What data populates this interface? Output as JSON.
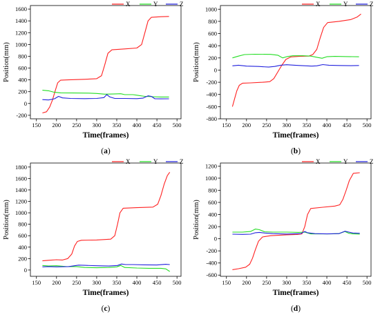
{
  "chart_data": [
    {
      "type": "line",
      "panel_label": "a",
      "xlabel": "Time(frames)",
      "ylabel": "Position(mm)",
      "xlim": [
        135,
        510
      ],
      "ylim": [
        -260,
        1660
      ],
      "xticks": [
        150,
        200,
        250,
        300,
        350,
        400,
        450,
        500
      ],
      "yticks": [
        -200,
        0,
        200,
        400,
        600,
        800,
        1000,
        1200,
        1400,
        1600
      ],
      "legend": "top-right",
      "series": [
        {
          "name": "X",
          "color": "#ff2020",
          "points": [
            [
              165,
              -160
            ],
            [
              175,
              -140
            ],
            [
              183,
              -60
            ],
            [
              190,
              60
            ],
            [
              196,
              200
            ],
            [
              203,
              350
            ],
            [
              210,
              395
            ],
            [
              230,
              400
            ],
            [
              270,
              410
            ],
            [
              300,
              420
            ],
            [
              312,
              470
            ],
            [
              320,
              650
            ],
            [
              328,
              850
            ],
            [
              338,
              910
            ],
            [
              370,
              925
            ],
            [
              400,
              940
            ],
            [
              412,
              1000
            ],
            [
              420,
              1200
            ],
            [
              428,
              1400
            ],
            [
              436,
              1460
            ],
            [
              460,
              1470
            ],
            [
              480,
              1475
            ]
          ]
        },
        {
          "name": "Y",
          "color": "#22dd22",
          "points": [
            [
              165,
              225
            ],
            [
              180,
              215
            ],
            [
              195,
              190
            ],
            [
              210,
              180
            ],
            [
              240,
              178
            ],
            [
              280,
              175
            ],
            [
              300,
              170
            ],
            [
              320,
              158
            ],
            [
              340,
              160
            ],
            [
              360,
              165
            ],
            [
              370,
              150
            ],
            [
              390,
              150
            ],
            [
              400,
              140
            ],
            [
              420,
              120
            ],
            [
              440,
              115
            ],
            [
              460,
              110
            ],
            [
              480,
              110
            ]
          ]
        },
        {
          "name": "Z",
          "color": "#2020dd",
          "points": [
            [
              165,
              65
            ],
            [
              180,
              60
            ],
            [
              195,
              80
            ],
            [
              205,
              120
            ],
            [
              215,
              95
            ],
            [
              235,
              85
            ],
            [
              270,
              82
            ],
            [
              300,
              85
            ],
            [
              318,
              100
            ],
            [
              325,
              150
            ],
            [
              333,
              110
            ],
            [
              345,
              85
            ],
            [
              370,
              85
            ],
            [
              400,
              82
            ],
            [
              415,
              90
            ],
            [
              428,
              130
            ],
            [
              436,
              120
            ],
            [
              445,
              80
            ],
            [
              460,
              78
            ],
            [
              480,
              80
            ]
          ]
        }
      ]
    },
    {
      "type": "line",
      "panel_label": "b",
      "xlabel": "Time(frames)",
      "ylabel": "Position(mm)",
      "xlim": [
        135,
        510
      ],
      "ylim": [
        -800,
        1060
      ],
      "xticks": [
        150,
        200,
        250,
        300,
        350,
        400,
        450,
        500
      ],
      "yticks": [
        -800,
        -600,
        -400,
        -200,
        0,
        200,
        400,
        600,
        800,
        1000
      ],
      "legend": "top-right",
      "series": [
        {
          "name": "X",
          "color": "#ff2020",
          "points": [
            [
              165,
              -600
            ],
            [
              170,
              -480
            ],
            [
              176,
              -340
            ],
            [
              182,
              -250
            ],
            [
              190,
              -215
            ],
            [
              210,
              -210
            ],
            [
              240,
              -200
            ],
            [
              258,
              -190
            ],
            [
              268,
              -140
            ],
            [
              278,
              -30
            ],
            [
              288,
              80
            ],
            [
              298,
              175
            ],
            [
              310,
              215
            ],
            [
              330,
              225
            ],
            [
              355,
              230
            ],
            [
              365,
              255
            ],
            [
              375,
              340
            ],
            [
              383,
              520
            ],
            [
              392,
              700
            ],
            [
              402,
              780
            ],
            [
              430,
              800
            ],
            [
              460,
              830
            ],
            [
              475,
              870
            ],
            [
              485,
              920
            ]
          ]
        },
        {
          "name": "Y",
          "color": "#22dd22",
          "points": [
            [
              165,
              200
            ],
            [
              180,
              230
            ],
            [
              195,
              255
            ],
            [
              220,
              260
            ],
            [
              260,
              258
            ],
            [
              278,
              245
            ],
            [
              290,
              200
            ],
            [
              300,
              220
            ],
            [
              315,
              235
            ],
            [
              340,
              235
            ],
            [
              360,
              230
            ],
            [
              375,
              210
            ],
            [
              388,
              195
            ],
            [
              400,
              220
            ],
            [
              420,
              225
            ],
            [
              450,
              222
            ],
            [
              480,
              218
            ]
          ]
        },
        {
          "name": "Z",
          "color": "#2020dd",
          "points": [
            [
              165,
              70
            ],
            [
              180,
              80
            ],
            [
              200,
              65
            ],
            [
              230,
              60
            ],
            [
              255,
              50
            ],
            [
              270,
              60
            ],
            [
              285,
              80
            ],
            [
              300,
              88
            ],
            [
              320,
              80
            ],
            [
              340,
              72
            ],
            [
              362,
              65
            ],
            [
              375,
              70
            ],
            [
              390,
              90
            ],
            [
              405,
              80
            ],
            [
              430,
              75
            ],
            [
              460,
              72
            ],
            [
              480,
              75
            ]
          ]
        }
      ]
    },
    {
      "type": "line",
      "panel_label": "c",
      "xlabel": "Time(frames)",
      "ylabel": "Position(mm)",
      "xlim": [
        135,
        510
      ],
      "ylim": [
        -110,
        1870
      ],
      "xticks": [
        150,
        200,
        250,
        300,
        350,
        400,
        450,
        500
      ],
      "yticks": [
        0,
        200,
        400,
        600,
        800,
        1000,
        1200,
        1400,
        1600,
        1800
      ],
      "legend": "top-right",
      "series": [
        {
          "name": "X",
          "color": "#ff2020",
          "points": [
            [
              165,
              160
            ],
            [
              180,
              170
            ],
            [
              200,
              180
            ],
            [
              215,
              175
            ],
            [
              228,
              200
            ],
            [
              238,
              280
            ],
            [
              245,
              420
            ],
            [
              252,
              500
            ],
            [
              262,
              520
            ],
            [
              300,
              525
            ],
            [
              335,
              540
            ],
            [
              345,
              600
            ],
            [
              352,
              800
            ],
            [
              358,
              1000
            ],
            [
              366,
              1080
            ],
            [
              400,
              1090
            ],
            [
              440,
              1100
            ],
            [
              452,
              1150
            ],
            [
              460,
              1300
            ],
            [
              468,
              1500
            ],
            [
              476,
              1650
            ],
            [
              482,
              1710
            ]
          ]
        },
        {
          "name": "Y",
          "color": "#22dd22",
          "points": [
            [
              165,
              80
            ],
            [
              180,
              70
            ],
            [
              200,
              75
            ],
            [
              225,
              60
            ],
            [
              250,
              60
            ],
            [
              270,
              45
            ],
            [
              300,
              40
            ],
            [
              330,
              45
            ],
            [
              350,
              55
            ],
            [
              360,
              80
            ],
            [
              370,
              45
            ],
            [
              400,
              35
            ],
            [
              430,
              30
            ],
            [
              460,
              30
            ],
            [
              472,
              20
            ],
            [
              482,
              -25
            ]
          ]
        },
        {
          "name": "Z",
          "color": "#2020dd",
          "points": [
            [
              165,
              55
            ],
            [
              180,
              60
            ],
            [
              200,
              55
            ],
            [
              230,
              60
            ],
            [
              255,
              85
            ],
            [
              270,
              82
            ],
            [
              300,
              75
            ],
            [
              330,
              70
            ],
            [
              352,
              80
            ],
            [
              362,
              105
            ],
            [
              372,
              95
            ],
            [
              390,
              95
            ],
            [
              420,
              90
            ],
            [
              450,
              88
            ],
            [
              472,
              100
            ],
            [
              482,
              95
            ]
          ]
        }
      ]
    },
    {
      "type": "line",
      "panel_label": "d",
      "xlabel": "Time(frames)",
      "ylabel": "Position(mm)",
      "xlim": [
        135,
        510
      ],
      "ylim": [
        -620,
        1250
      ],
      "xticks": [
        150,
        200,
        250,
        300,
        350,
        400,
        450,
        500
      ],
      "yticks": [
        -600,
        -400,
        -200,
        0,
        200,
        400,
        600,
        800,
        1000,
        1200
      ],
      "legend": "top-right",
      "series": [
        {
          "name": "X",
          "color": "#ff2020",
          "points": [
            [
              165,
              -510
            ],
            [
              180,
              -495
            ],
            [
              198,
              -470
            ],
            [
              208,
              -420
            ],
            [
              215,
              -320
            ],
            [
              222,
              -180
            ],
            [
              230,
              -40
            ],
            [
              240,
              30
            ],
            [
              260,
              50
            ],
            [
              300,
              65
            ],
            [
              325,
              70
            ],
            [
              338,
              80
            ],
            [
              345,
              200
            ],
            [
              352,
              400
            ],
            [
              360,
              500
            ],
            [
              390,
              520
            ],
            [
              420,
              540
            ],
            [
              432,
              560
            ],
            [
              440,
              650
            ],
            [
              448,
              800
            ],
            [
              456,
              960
            ],
            [
              466,
              1080
            ],
            [
              482,
              1090
            ]
          ]
        },
        {
          "name": "Y",
          "color": "#22dd22",
          "points": [
            [
              165,
              110
            ],
            [
              190,
              110
            ],
            [
              210,
              120
            ],
            [
              222,
              160
            ],
            [
              232,
              150
            ],
            [
              245,
              115
            ],
            [
              265,
              110
            ],
            [
              300,
              110
            ],
            [
              330,
              105
            ],
            [
              345,
              110
            ],
            [
              360,
              80
            ],
            [
              380,
              80
            ],
            [
              410,
              80
            ],
            [
              430,
              85
            ],
            [
              445,
              120
            ],
            [
              455,
              90
            ],
            [
              465,
              80
            ],
            [
              482,
              75
            ]
          ]
        },
        {
          "name": "Z",
          "color": "#2020dd",
          "points": [
            [
              165,
              75
            ],
            [
              190,
              72
            ],
            [
              210,
              75
            ],
            [
              222,
              100
            ],
            [
              232,
              105
            ],
            [
              245,
              95
            ],
            [
              265,
              85
            ],
            [
              300,
              78
            ],
            [
              335,
              85
            ],
            [
              345,
              120
            ],
            [
              352,
              100
            ],
            [
              370,
              85
            ],
            [
              400,
              80
            ],
            [
              430,
              85
            ],
            [
              445,
              125
            ],
            [
              455,
              110
            ],
            [
              465,
              95
            ],
            [
              482,
              90
            ]
          ]
        }
      ]
    }
  ]
}
